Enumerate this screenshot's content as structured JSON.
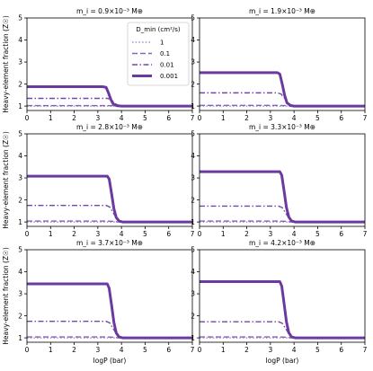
{
  "figure": {
    "shared_ylabel": "Heavy-element fraction (Z☉)",
    "shared_xlabel": "logP (bar)"
  },
  "legend": {
    "title": "D_min (cm²/s)",
    "placement": "top-right of panel 1",
    "entries": [
      {
        "label": "1",
        "style": "dotted",
        "color": "#a48fc6"
      },
      {
        "label": "0.1",
        "style": "dashed",
        "color": "#8563b8"
      },
      {
        "label": "0.01",
        "style": "dashdot",
        "color": "#7348aa"
      },
      {
        "label": "0.001",
        "style": "solid-thick",
        "color": "#6a3aa1"
      }
    ]
  },
  "colors": {
    "series": [
      "#a48fc6",
      "#8563b8",
      "#7348aa",
      "#6a3aa1"
    ],
    "axes": "#000000"
  },
  "chart_data": [
    {
      "type": "line",
      "title": "m_i = 0.9×10⁻³ M⊕",
      "xlabel": "",
      "ylabel": "Heavy-element fraction (Z☉)",
      "xlim": [
        0,
        7
      ],
      "ylim": [
        0.8,
        5
      ],
      "xticks": [
        0,
        1,
        2,
        3,
        4,
        5,
        6,
        7
      ],
      "yticks": [
        1,
        2,
        3,
        4,
        5
      ],
      "series": [
        {
          "name": "1",
          "x": [
            0,
            3.5,
            3.6,
            3.75,
            4,
            7
          ],
          "y": [
            1.0,
            1.0,
            1.0,
            1.0,
            1.0,
            1.0
          ]
        },
        {
          "name": "0.1",
          "x": [
            0,
            3.4,
            3.55,
            3.75,
            4,
            7
          ],
          "y": [
            1.02,
            1.02,
            1.02,
            1.01,
            1.0,
            1.0
          ]
        },
        {
          "name": "0.01",
          "x": [
            0,
            3.4,
            3.5,
            3.6,
            3.75,
            3.9,
            4.1,
            7
          ],
          "y": [
            1.35,
            1.35,
            1.33,
            1.25,
            1.1,
            1.02,
            1.0,
            1.0
          ]
        },
        {
          "name": "0.001",
          "x": [
            0,
            3.2,
            3.35,
            3.45,
            3.55,
            3.65,
            3.8,
            4.0,
            7
          ],
          "y": [
            1.88,
            1.88,
            1.85,
            1.6,
            1.3,
            1.1,
            1.02,
            1.0,
            1.0
          ]
        }
      ]
    },
    {
      "type": "line",
      "title": "m_i = 1.9×10⁻³ M⊕",
      "xlabel": "",
      "ylabel": "",
      "xlim": [
        0,
        7
      ],
      "ylim": [
        0.8,
        5
      ],
      "xticks": [
        0,
        1,
        2,
        3,
        4,
        5,
        6,
        7
      ],
      "yticks": [
        1,
        2,
        3,
        4,
        5
      ],
      "series": [
        {
          "name": "1",
          "x": [
            0,
            7
          ],
          "y": [
            1.0,
            1.0
          ]
        },
        {
          "name": "0.1",
          "x": [
            0,
            3.4,
            3.6,
            3.8,
            4.0,
            7
          ],
          "y": [
            1.03,
            1.03,
            1.02,
            1.01,
            1.0,
            1.0
          ]
        },
        {
          "name": "0.01",
          "x": [
            0,
            3.3,
            3.45,
            3.6,
            3.75,
            3.9,
            4.1,
            7
          ],
          "y": [
            1.6,
            1.6,
            1.55,
            1.35,
            1.12,
            1.03,
            1.0,
            1.0
          ]
        },
        {
          "name": "0.001",
          "x": [
            0,
            3.3,
            3.4,
            3.5,
            3.6,
            3.7,
            3.85,
            4.0,
            7
          ],
          "y": [
            2.52,
            2.52,
            2.45,
            2.0,
            1.5,
            1.15,
            1.03,
            1.0,
            1.0
          ]
        }
      ]
    },
    {
      "type": "line",
      "title": "m_i = 2.8×10⁻³ M⊕",
      "xlabel": "",
      "ylabel": "Heavy-element fraction (Z☉)",
      "xlim": [
        0,
        7
      ],
      "ylim": [
        0.8,
        5
      ],
      "xticks": [
        0,
        1,
        2,
        3,
        4,
        5,
        6,
        7
      ],
      "yticks": [
        1,
        2,
        3,
        4,
        5
      ],
      "series": [
        {
          "name": "1",
          "x": [
            0,
            7
          ],
          "y": [
            1.0,
            1.0
          ]
        },
        {
          "name": "0.1",
          "x": [
            0,
            3.4,
            3.6,
            3.8,
            4.0,
            7
          ],
          "y": [
            1.04,
            1.04,
            1.03,
            1.01,
            1.0,
            1.0
          ]
        },
        {
          "name": "0.01",
          "x": [
            0,
            3.35,
            3.5,
            3.65,
            3.8,
            3.95,
            4.15,
            7
          ],
          "y": [
            1.75,
            1.75,
            1.68,
            1.42,
            1.15,
            1.04,
            1.0,
            1.0
          ]
        },
        {
          "name": "0.001",
          "x": [
            0,
            3.4,
            3.48,
            3.58,
            3.68,
            3.78,
            3.9,
            4.05,
            7
          ],
          "y": [
            3.08,
            3.08,
            2.95,
            2.3,
            1.6,
            1.2,
            1.04,
            1.0,
            1.0
          ]
        }
      ]
    },
    {
      "type": "line",
      "title": "m_i = 3.3×10⁻³ M⊕",
      "xlabel": "",
      "ylabel": "",
      "xlim": [
        0,
        7
      ],
      "ylim": [
        0.8,
        5
      ],
      "xticks": [
        0,
        1,
        2,
        3,
        4,
        5,
        6,
        7
      ],
      "yticks": [
        1,
        2,
        3,
        4,
        5
      ],
      "series": [
        {
          "name": "1",
          "x": [
            0,
            7
          ],
          "y": [
            1.0,
            1.0
          ]
        },
        {
          "name": "0.1",
          "x": [
            0,
            3.4,
            3.6,
            3.8,
            4.0,
            7
          ],
          "y": [
            1.04,
            1.04,
            1.03,
            1.01,
            1.0,
            1.0
          ]
        },
        {
          "name": "0.01",
          "x": [
            0,
            3.35,
            3.5,
            3.65,
            3.8,
            3.95,
            4.15,
            7
          ],
          "y": [
            1.72,
            1.72,
            1.65,
            1.4,
            1.14,
            1.04,
            1.0,
            1.0
          ]
        },
        {
          "name": "0.001",
          "x": [
            0,
            3.4,
            3.48,
            3.58,
            3.68,
            3.78,
            3.9,
            4.05,
            7
          ],
          "y": [
            3.28,
            3.28,
            3.12,
            2.4,
            1.65,
            1.22,
            1.04,
            1.0,
            1.0
          ]
        }
      ]
    },
    {
      "type": "line",
      "title": "m_i = 3.7×10⁻³ M⊕",
      "xlabel": "logP (bar)",
      "ylabel": "Heavy-element fraction (Z☉)",
      "xlim": [
        0,
        7
      ],
      "ylim": [
        0.8,
        5
      ],
      "xticks": [
        0,
        1,
        2,
        3,
        4,
        5,
        6,
        7
      ],
      "yticks": [
        1,
        2,
        3,
        4,
        5
      ],
      "series": [
        {
          "name": "1",
          "x": [
            0,
            7
          ],
          "y": [
            1.0,
            1.0
          ]
        },
        {
          "name": "0.1",
          "x": [
            0,
            3.4,
            3.6,
            3.8,
            4.0,
            7
          ],
          "y": [
            1.04,
            1.04,
            1.03,
            1.01,
            1.0,
            1.0
          ]
        },
        {
          "name": "0.01",
          "x": [
            0,
            3.35,
            3.5,
            3.65,
            3.8,
            3.95,
            4.15,
            7
          ],
          "y": [
            1.75,
            1.75,
            1.68,
            1.42,
            1.15,
            1.04,
            1.0,
            1.0
          ]
        },
        {
          "name": "0.001",
          "x": [
            0,
            3.4,
            3.48,
            3.58,
            3.68,
            3.78,
            3.9,
            4.05,
            7
          ],
          "y": [
            3.45,
            3.45,
            3.25,
            2.5,
            1.7,
            1.22,
            1.04,
            1.0,
            1.0
          ]
        }
      ]
    },
    {
      "type": "line",
      "title": "m_i = 4.2×10⁻³ M⊕",
      "xlabel": "logP (bar)",
      "ylabel": "",
      "xlim": [
        0,
        7
      ],
      "ylim": [
        0.8,
        5
      ],
      "xticks": [
        0,
        1,
        2,
        3,
        4,
        5,
        6,
        7
      ],
      "yticks": [
        1,
        2,
        3,
        4,
        5
      ],
      "series": [
        {
          "name": "1",
          "x": [
            0,
            7
          ],
          "y": [
            1.0,
            1.0
          ]
        },
        {
          "name": "0.1",
          "x": [
            0,
            3.4,
            3.6,
            3.8,
            4.0,
            7
          ],
          "y": [
            1.04,
            1.04,
            1.03,
            1.01,
            1.0,
            1.0
          ]
        },
        {
          "name": "0.01",
          "x": [
            0,
            3.35,
            3.5,
            3.65,
            3.8,
            3.95,
            4.15,
            7
          ],
          "y": [
            1.73,
            1.73,
            1.66,
            1.41,
            1.15,
            1.04,
            1.0,
            1.0
          ]
        },
        {
          "name": "0.001",
          "x": [
            0,
            3.4,
            3.48,
            3.58,
            3.68,
            3.78,
            3.9,
            4.05,
            7
          ],
          "y": [
            3.55,
            3.55,
            3.35,
            2.55,
            1.72,
            1.23,
            1.04,
            1.0,
            1.0
          ]
        }
      ]
    }
  ]
}
